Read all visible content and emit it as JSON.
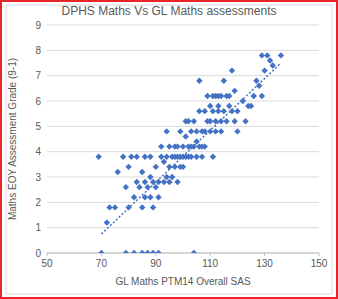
{
  "chart_data": {
    "type": "scatter",
    "title": "DPHS Maths Vs GL Maths assessments",
    "x_label": "GL Maths PTM14 Overall SAS",
    "y_label": "Maths EOY Assessment Grade (9-1)",
    "xlim": [
      50,
      150
    ],
    "xticks": [
      50,
      70,
      90,
      110,
      130,
      150
    ],
    "ylim": [
      0,
      9
    ],
    "yticks": [
      0,
      1,
      2,
      3,
      4,
      5,
      6,
      7,
      8,
      9
    ],
    "grid": true,
    "series": [
      {
        "type": "scatter",
        "color": "#4472c4",
        "marker": "diamond",
        "x": [
          69,
          70,
          72,
          73,
          75,
          76,
          78,
          79,
          79,
          80,
          80,
          81,
          82,
          82,
          83,
          83,
          84,
          85,
          85,
          85,
          86,
          86,
          86,
          87,
          87,
          88,
          88,
          88,
          89,
          89,
          89,
          90,
          90,
          91,
          91,
          91,
          92,
          92,
          93,
          93,
          94,
          94,
          94,
          95,
          95,
          95,
          96,
          96,
          97,
          97,
          97,
          98,
          98,
          98,
          99,
          99,
          99,
          100,
          100,
          100,
          101,
          101,
          101,
          102,
          102,
          102,
          103,
          103,
          103,
          104,
          104,
          104,
          105,
          105,
          105,
          106,
          106,
          106,
          107,
          107,
          107,
          108,
          108,
          108,
          109,
          109,
          110,
          110,
          110,
          111,
          111,
          111,
          112,
          112,
          112,
          113,
          113,
          113,
          114,
          114,
          114,
          115,
          115,
          116,
          116,
          117,
          117,
          118,
          118,
          119,
          119,
          120,
          120,
          122,
          123,
          124,
          125,
          126,
          127,
          128,
          129,
          129,
          130,
          131,
          132,
          133,
          136
        ],
        "values": [
          3.8,
          0,
          1.2,
          1.8,
          1.8,
          3.2,
          3.8,
          0,
          2.6,
          1.8,
          3.4,
          3.8,
          0,
          2.2,
          2.8,
          3.8,
          2.6,
          0,
          1.8,
          3.2,
          2.2,
          2.8,
          3.8,
          0,
          2.6,
          2.2,
          3.0,
          3.8,
          0,
          1.8,
          2.8,
          2.6,
          3.4,
          0,
          2.2,
          2.8,
          3.8,
          4.2,
          2.8,
          3.6,
          3.0,
          3.8,
          4.8,
          2.8,
          3.4,
          4.2,
          3.8,
          3.0,
          3.4,
          4.2,
          3.8,
          3.8,
          2.8,
          4.2,
          3.4,
          3.8,
          4.8,
          3.8,
          4.2,
          3.4,
          3.8,
          4.6,
          5.2,
          4.2,
          3.8,
          5.2,
          4.2,
          4.8,
          3.8,
          0,
          5.2,
          4.2,
          4.8,
          3.8,
          4.4,
          6.8,
          4.2,
          5.6,
          3.8,
          4.8,
          4.2,
          5.6,
          4.8,
          4.2,
          5.2,
          6.2,
          4.8,
          5.8,
          5.2,
          6.2,
          5.6,
          3.8,
          5.2,
          6.2,
          4.8,
          6.2,
          5.6,
          5.8,
          6.2,
          5.2,
          4.8,
          5.6,
          6.8,
          6.2,
          5.2,
          5.8,
          6.2,
          7.2,
          5.6,
          5.2,
          6.4,
          4.8,
          5.6,
          6.0,
          5.2,
          5.8,
          5.8,
          6.2,
          6.8,
          6.6,
          7.8,
          6.2,
          7.2,
          7.8,
          7.6,
          7.4,
          7.8
        ]
      },
      {
        "type": "line",
        "color": "#4472c4",
        "line_style": "dotted",
        "x": [
          70,
          136
        ],
        "values": [
          0.75,
          7.5
        ]
      }
    ]
  }
}
